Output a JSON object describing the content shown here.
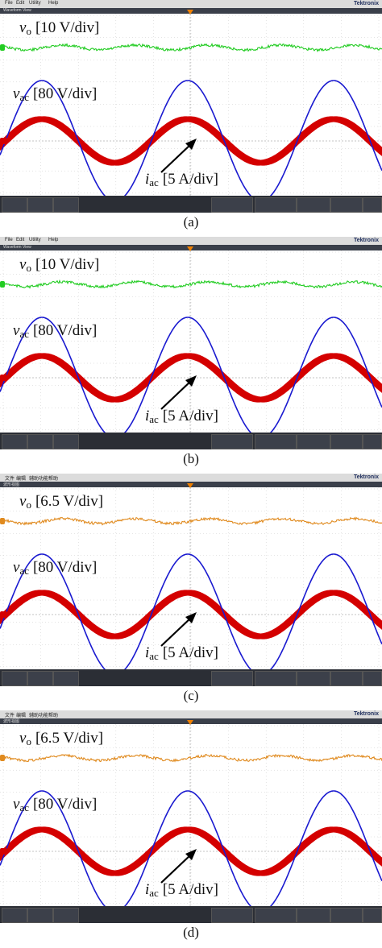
{
  "panels": [
    {
      "caption": "(a)",
      "vo_label": "[10 V/div]",
      "vac_label": "[80 V/div]",
      "iac_label": "[5 A/div]",
      "vo_color": "#22cc22",
      "menu": [
        "File",
        "Edit",
        "Utility",
        "Help"
      ],
      "subtitle": "Waveform View",
      "brand": "Tektronix"
    },
    {
      "caption": "(b)",
      "vo_label": "[10 V/div]",
      "vac_label": "[80 V/div]",
      "iac_label": "[5 A/div]",
      "vo_color": "#22cc22",
      "menu": [
        "File",
        "Edit",
        "Utility",
        "Help"
      ],
      "subtitle": "Waveform View",
      "brand": "Tektronix"
    },
    {
      "caption": "(c)",
      "vo_label": "[6.5 V/div]",
      "vac_label": "[80 V/div]",
      "iac_label": "[5 A/div]",
      "vo_color": "#e08a1e",
      "menu": [
        "文件",
        "编辑",
        "辅助功能",
        "帮助"
      ],
      "subtitle": "波形视图",
      "brand": "Tektronix"
    },
    {
      "caption": "(d)",
      "vo_label": "[6.5 V/div]",
      "vac_label": "[80 V/div]",
      "iac_label": "[5 A/div]",
      "vo_color": "#e08a1e",
      "menu": [
        "文件",
        "编辑",
        "辅助功能",
        "帮助"
      ],
      "subtitle": "波形视图",
      "brand": "Tektronix"
    }
  ],
  "symbols": {
    "vo_sym": "v",
    "vo_sub": "o",
    "vac_sym": "v",
    "vac_sub": "ac",
    "iac_sym": "i",
    "iac_sub": "ac"
  },
  "colors": {
    "vac": "#1a1ad0",
    "iac": "#d40000",
    "grid": "#c8c8c8",
    "trigger": "#f08000"
  },
  "chart_data": [
    {
      "type": "line",
      "panel": "(a)",
      "time_ms_range": [
        -20,
        20
      ],
      "series": [
        {
          "values_per_div": {
            "vo": 10,
            "vac": 80,
            "iac": 5
          },
          "cycles_shown": 3
        }
      ]
    },
    {
      "type": "line",
      "panel": "(b)",
      "time_ms_range": [
        -20,
        20
      ],
      "series": [
        {
          "values_per_div": {
            "vo": 10,
            "vac": 80,
            "iac": 5
          },
          "cycles_shown": 3
        }
      ]
    },
    {
      "type": "line",
      "panel": "(c)",
      "time_ms_range": [
        -20,
        20
      ],
      "series": [
        {
          "values_per_div": {
            "vo": 6.5,
            "vac": 80,
            "iac": 5
          },
          "cycles_shown": 3
        }
      ]
    },
    {
      "type": "line",
      "panel": "(d)",
      "time_ms_range": [
        -20,
        20
      ],
      "series": [
        {
          "values_per_div": {
            "vo": 6.5,
            "vac": 80,
            "iac": 5
          },
          "cycles_shown": 3
        }
      ]
    }
  ]
}
